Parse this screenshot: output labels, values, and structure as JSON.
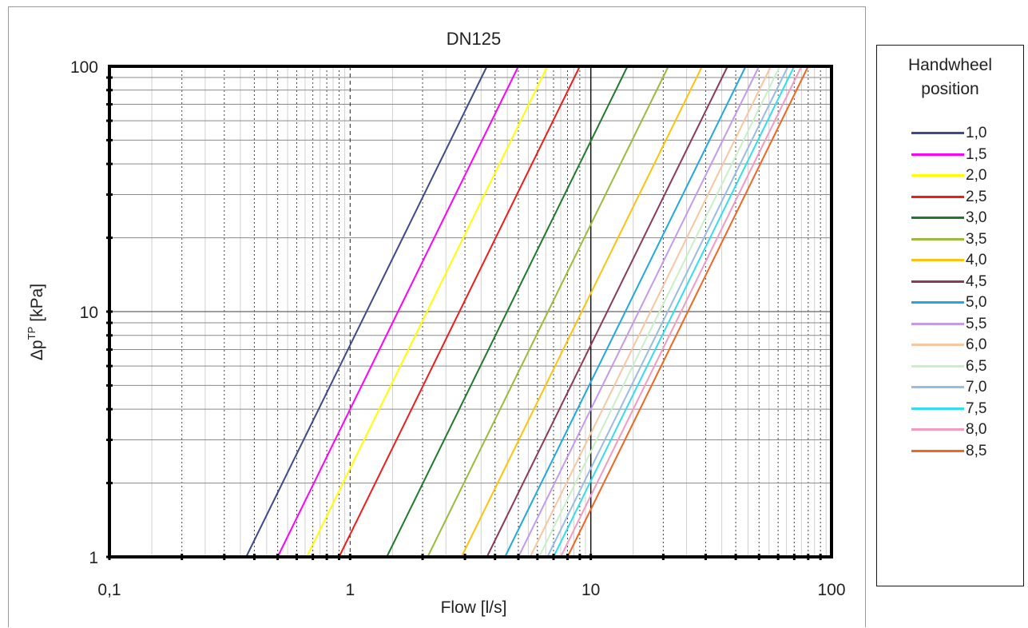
{
  "chart_data": {
    "type": "line",
    "title": "DN125",
    "xlabel": "Flow [l/s]",
    "ylabel": "Δp",
    "ylabel_superscript": "TP",
    "ylabel_unit": "[kPa]",
    "xscale": "log",
    "yscale": "log",
    "xlim": [
      0.1,
      100
    ],
    "ylim": [
      1,
      100
    ],
    "x_ticks": [
      "0,1",
      "1",
      "10",
      "100"
    ],
    "y_ticks": [
      "1",
      "10",
      "100"
    ],
    "grid": true,
    "legend_position": "right",
    "legend_title": [
      "Handwheel",
      "position"
    ],
    "series": [
      {
        "name": "1,0",
        "color": "#404a8a",
        "x": [
          0.37,
          3.7
        ],
        "y": [
          1,
          100
        ]
      },
      {
        "name": "1,5",
        "color": "#ff00ff",
        "x": [
          0.5,
          5.0
        ],
        "y": [
          1,
          100
        ]
      },
      {
        "name": "2,0",
        "color": "#ffff00",
        "x": [
          0.66,
          6.6
        ],
        "y": [
          1,
          100
        ]
      },
      {
        "name": "2,5",
        "color": "#ee1c1c",
        "x": [
          0.9,
          9.0
        ],
        "y": [
          1,
          100
        ]
      },
      {
        "name": "3,0",
        "color": "#1f7a2e",
        "x": [
          1.42,
          14.2
        ],
        "y": [
          1,
          100
        ]
      },
      {
        "name": "3,5",
        "color": "#9bbb3b",
        "x": [
          2.1,
          21.0
        ],
        "y": [
          1,
          100
        ]
      },
      {
        "name": "4,0",
        "color": "#ffc20e",
        "x": [
          2.9,
          29.0
        ],
        "y": [
          1,
          100
        ]
      },
      {
        "name": "4,5",
        "color": "#8b3a5a",
        "x": [
          3.7,
          37.0
        ],
        "y": [
          1,
          100
        ]
      },
      {
        "name": "5,0",
        "color": "#22a8e0",
        "x": [
          4.4,
          44.0
        ],
        "y": [
          1,
          100
        ]
      },
      {
        "name": "5,5",
        "color": "#c39be8",
        "x": [
          5.0,
          50.0
        ],
        "y": [
          1,
          100
        ]
      },
      {
        "name": "6,0",
        "color": "#f7c6a3",
        "x": [
          5.6,
          56.0
        ],
        "y": [
          1,
          100
        ]
      },
      {
        "name": "6,5",
        "color": "#c8f0c8",
        "x": [
          6.1,
          61.0
        ],
        "y": [
          1,
          100
        ]
      },
      {
        "name": "7,0",
        "color": "#99bde0",
        "x": [
          6.6,
          66.0
        ],
        "y": [
          1,
          100
        ]
      },
      {
        "name": "7,5",
        "color": "#33ddee",
        "x": [
          7.0,
          70.0
        ],
        "y": [
          1,
          100
        ]
      },
      {
        "name": "8,0",
        "color": "#f59ac0",
        "x": [
          7.5,
          75.0
        ],
        "y": [
          1,
          100
        ]
      },
      {
        "name": "8,5",
        "color": "#f26522",
        "x": [
          8.0,
          80.0
        ],
        "y": [
          1,
          100
        ]
      }
    ]
  }
}
